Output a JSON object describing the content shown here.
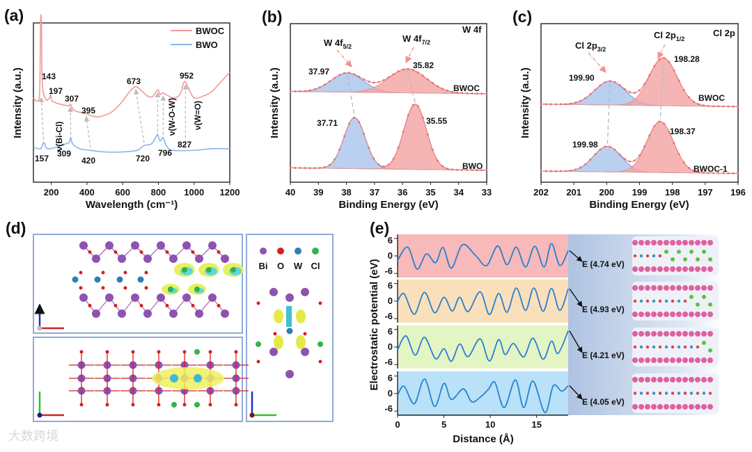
{
  "figure": {
    "panel_labels": [
      "(a)",
      "(b)",
      "(c)",
      "(d)",
      "(e)"
    ],
    "watermark": "大数跨境"
  },
  "colors": {
    "pink": "#ef9a9a",
    "blue": "#8ab4e8",
    "red_fill": "#f4a3a3",
    "blue_fill": "#a8c4ee",
    "dots": "#e57373",
    "curve_e": "#2a7fd4"
  },
  "chart_data": [
    {
      "id": "a",
      "type": "line",
      "title": "",
      "xlabel": "Wavelength (cm⁻¹)",
      "ylabel": "Intensity (a.u.)",
      "xlim": [
        100,
        1200
      ],
      "xticks": [
        200,
        400,
        600,
        800,
        1000,
        1200
      ],
      "legend": {
        "placement": "top-right",
        "entries": [
          "BWOC",
          "BWO"
        ]
      },
      "series": [
        {
          "name": "BWOC",
          "color": "#ef9a9a",
          "points": [
            [
              100,
              53
            ],
            [
              120,
              51
            ],
            [
              135,
              57
            ],
            [
              140,
              100
            ],
            [
              145,
              100
            ],
            [
              150,
              62
            ],
            [
              170,
              52
            ],
            [
              190,
              53
            ],
            [
              197,
              55
            ],
            [
              205,
              51
            ],
            [
              250,
              49
            ],
            [
              300,
              48
            ],
            [
              307,
              49
            ],
            [
              330,
              45
            ],
            [
              395,
              43
            ],
            [
              450,
              41
            ],
            [
              500,
              42
            ],
            [
              550,
              45
            ],
            [
              600,
              51
            ],
            [
              640,
              57
            ],
            [
              673,
              60
            ],
            [
              700,
              58
            ],
            [
              740,
              54
            ],
            [
              770,
              54
            ],
            [
              796,
              58
            ],
            [
              810,
              55
            ],
            [
              827,
              56
            ],
            [
              880,
              53
            ],
            [
              920,
              55
            ],
            [
              940,
              62
            ],
            [
              952,
              63
            ],
            [
              965,
              60
            ],
            [
              1000,
              53
            ],
            [
              1050,
              54
            ],
            [
              1100,
              57
            ],
            [
              1150,
              63
            ],
            [
              1200,
              69
            ]
          ]
        },
        {
          "name": "BWO",
          "color": "#8ab4e8",
          "points": [
            [
              100,
              22
            ],
            [
              140,
              21
            ],
            [
              157,
              25
            ],
            [
              170,
              22
            ],
            [
              185,
              21
            ],
            [
              230,
              22
            ],
            [
              280,
              24
            ],
            [
              300,
              25
            ],
            [
              309,
              28
            ],
            [
              320,
              24
            ],
            [
              360,
              21
            ],
            [
              420,
              20
            ],
            [
              500,
              19
            ],
            [
              600,
              19
            ],
            [
              680,
              20
            ],
            [
              720,
              23
            ],
            [
              760,
              24
            ],
            [
              790,
              29
            ],
            [
              796,
              30
            ],
            [
              810,
              26
            ],
            [
              827,
              28
            ],
            [
              845,
              23
            ],
            [
              880,
              20
            ],
            [
              1000,
              20
            ],
            [
              1100,
              21
            ],
            [
              1200,
              21
            ]
          ]
        }
      ],
      "annotations": {
        "bwoc_peaks": [
          "143",
          "197",
          "307",
          "395",
          "673",
          "952"
        ],
        "bwo_peaks": [
          "157",
          "309",
          "420",
          "720",
          "796",
          "827"
        ],
        "modes": [
          "ν(Bi-Cl)",
          "ν(W-O-W)",
          "ν(W=O)"
        ],
        "shift_pairs": [
          [
            157,
            143
          ],
          [
            309,
            307
          ],
          [
            420,
            395
          ],
          [
            720,
            673
          ],
          [
            796,
            796
          ],
          [
            827,
            827
          ],
          [
            952,
            952
          ]
        ]
      }
    },
    {
      "id": "b",
      "type": "area",
      "xlabel": "Binding Energy (eV)",
      "ylabel": "Intensity (a.u.)",
      "xlim": [
        40,
        33
      ],
      "xticks": [
        40,
        39,
        38,
        37,
        36,
        35,
        34,
        33
      ],
      "corner_label": "W 4f",
      "peak_labels": [
        {
          "main": "W 4f",
          "sub": "5/2"
        },
        {
          "main": "W 4f",
          "sub": "7/2"
        }
      ],
      "spectra": [
        {
          "name": "BWOC",
          "offset": 57,
          "peaks": [
            {
              "center": 37.97,
              "amp": 12,
              "fwhm": 1.35,
              "label": "37.97",
              "kind": "blue"
            },
            {
              "center": 35.82,
              "amp": 15,
              "fwhm": 1.6,
              "label": "35.82",
              "kind": "red"
            }
          ]
        },
        {
          "name": "BWO",
          "offset": 9,
          "peaks": [
            {
              "center": 37.71,
              "amp": 32,
              "fwhm": 0.9,
              "label": "37.71",
              "kind": "blue"
            },
            {
              "center": 35.55,
              "amp": 41,
              "fwhm": 0.95,
              "label": "35.55",
              "kind": "red"
            }
          ]
        }
      ]
    },
    {
      "id": "c",
      "type": "area",
      "xlabel": "Binding Energy (eV)",
      "ylabel": "Intensity (a.u.)",
      "xlim": [
        202,
        196
      ],
      "xticks": [
        202,
        201,
        200,
        199,
        198,
        197,
        196
      ],
      "corner_label": "Cl 2p",
      "peak_labels": [
        {
          "main": "Cl 2p",
          "sub": "3/2"
        },
        {
          "main": "Cl 2p",
          "sub": "1/2"
        }
      ],
      "spectra": [
        {
          "name": "BWOC",
          "offset": 49,
          "peaks": [
            {
              "center": 199.9,
              "amp": 15,
              "fwhm": 1.1,
              "label": "199.90",
              "kind": "blue"
            },
            {
              "center": 198.28,
              "amp": 30,
              "fwhm": 1.0,
              "label": "198.28",
              "kind": "red"
            }
          ]
        },
        {
          "name": "BWOC-1",
          "offset": 7,
          "peaks": [
            {
              "center": 199.98,
              "amp": 16,
              "fwhm": 1.0,
              "label": "199.98",
              "kind": "blue"
            },
            {
              "center": 198.37,
              "amp": 32,
              "fwhm": 0.95,
              "label": "198.37",
              "kind": "red"
            }
          ]
        }
      ]
    },
    {
      "id": "e",
      "type": "line",
      "xlabel": "Distance (Å)",
      "ylabel": "Electrostatic potential (eV)",
      "xlim": [
        0,
        18.4
      ],
      "ylim": [
        -6,
        6
      ],
      "xticks": [
        0,
        5,
        10,
        15
      ],
      "yticks": [
        6,
        0,
        -6
      ],
      "series": [
        {
          "work_function": "E (4.74 eV)",
          "bg": "#f7b9b9",
          "points": [
            [
              0,
              -1.5
            ],
            [
              1.1,
              3
            ],
            [
              2.1,
              -4.5
            ],
            [
              3.1,
              0.7
            ],
            [
              4.1,
              -2.3
            ],
            [
              4.9,
              2.9
            ],
            [
              5.8,
              -4.2
            ],
            [
              7.0,
              3.8
            ],
            [
              8.4,
              0.2
            ],
            [
              9.6,
              -3.3
            ],
            [
              10.8,
              3.4
            ],
            [
              11.8,
              -3.0
            ],
            [
              12.8,
              3.0
            ],
            [
              13.8,
              -3.8
            ],
            [
              14.8,
              3.3
            ],
            [
              15.8,
              -3.8
            ],
            [
              16.6,
              4.2
            ],
            [
              17.5,
              -3.3
            ],
            [
              18.4,
              1.8
            ]
          ]
        },
        {
          "work_function": "E (4.93 eV)",
          "bg": "#f9e0ba",
          "points": [
            [
              0,
              0
            ],
            [
              0.7,
              2.5
            ],
            [
              1.8,
              -4.5
            ],
            [
              2.9,
              3
            ],
            [
              4.0,
              -4
            ],
            [
              5.0,
              1.3
            ],
            [
              5.9,
              -3.4
            ],
            [
              6.7,
              1.3
            ],
            [
              7.6,
              -3.6
            ],
            [
              8.9,
              3.2
            ],
            [
              9.9,
              -4.6
            ],
            [
              10.9,
              2.6
            ],
            [
              11.8,
              -3.8
            ],
            [
              12.8,
              4.5
            ],
            [
              13.8,
              -3.2
            ],
            [
              14.7,
              4.5
            ],
            [
              15.7,
              -3.5
            ],
            [
              16.6,
              4.3
            ],
            [
              17.5,
              -3.2
            ],
            [
              18.4,
              4.2
            ]
          ]
        },
        {
          "work_function": "E (4.21 eV)",
          "bg": "#e4f5c4",
          "points": [
            [
              0,
              -1
            ],
            [
              0.9,
              3.8
            ],
            [
              1.9,
              -2.8
            ],
            [
              2.9,
              3.3
            ],
            [
              4.1,
              -4
            ],
            [
              5.0,
              -0.6
            ],
            [
              5.8,
              -4.9
            ],
            [
              6.7,
              1.0
            ],
            [
              7.6,
              -3.3
            ],
            [
              8.9,
              2.8
            ],
            [
              9.9,
              -4.8
            ],
            [
              10.9,
              2.5
            ],
            [
              11.6,
              -2.6
            ],
            [
              12.5,
              1.2
            ],
            [
              13.6,
              -3.4
            ],
            [
              14.6,
              3.0
            ],
            [
              15.7,
              -4.2
            ],
            [
              16.6,
              2.0
            ],
            [
              17.3,
              -2.2
            ],
            [
              18.4,
              5.5
            ]
          ]
        },
        {
          "work_function": "E (4.05 eV)",
          "bg": "#b9e2f8",
          "points": [
            [
              0,
              -0.5
            ],
            [
              0.7,
              2.5
            ],
            [
              1.8,
              -3.5
            ],
            [
              2.9,
              5
            ],
            [
              4.0,
              -4.4
            ],
            [
              5.0,
              3.5
            ],
            [
              5.8,
              -2
            ],
            [
              7.1,
              1.6
            ],
            [
              8.0,
              -2.8
            ],
            [
              9.0,
              -1
            ],
            [
              9.8,
              1.5
            ],
            [
              10.5,
              3.8
            ],
            [
              11.5,
              -4.8
            ],
            [
              12.7,
              4.7
            ],
            [
              13.6,
              -4.8
            ],
            [
              14.6,
              4.3
            ],
            [
              15.9,
              -6.5
            ],
            [
              16.8,
              2.7
            ],
            [
              17.7,
              0.8
            ],
            [
              18.4,
              2.7
            ]
          ]
        }
      ]
    }
  ],
  "structure_legend": [
    "Bi",
    "O",
    "W",
    "Cl"
  ]
}
